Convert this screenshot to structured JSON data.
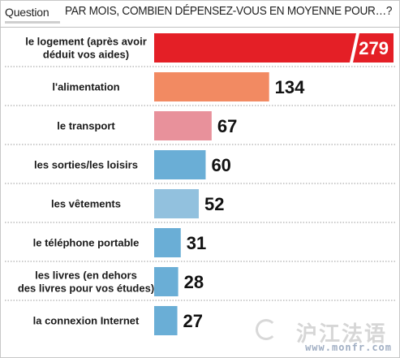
{
  "header": {
    "question_label": "Question",
    "question_text": "PAR MOIS, COMBIEN DÉPENSEZ-VOUS EN MOYENNE POUR…?"
  },
  "chart_data": {
    "type": "bar",
    "orientation": "horizontal",
    "categories": [
      [
        "le logement (après avoir",
        "déduit vos aides)"
      ],
      [
        "l'alimentation"
      ],
      [
        "le transport"
      ],
      [
        "les sorties/les loisirs"
      ],
      [
        "les vêtements"
      ],
      [
        "le téléphone portable"
      ],
      [
        "les livres (en dehors",
        "des livres pour vos études)"
      ],
      [
        "la connexion Internet"
      ]
    ],
    "values": [
      279,
      134,
      67,
      60,
      52,
      31,
      28,
      27
    ],
    "colors": [
      "#e41f26",
      "#f28a62",
      "#e8919b",
      "#6aaed6",
      "#92c1de",
      "#6aaed6",
      "#6aaed6",
      "#6aaed6"
    ],
    "grid": false,
    "legend": "none"
  },
  "watermark": {
    "text_cn": "沪江法语",
    "url": "www.monfr.com"
  }
}
